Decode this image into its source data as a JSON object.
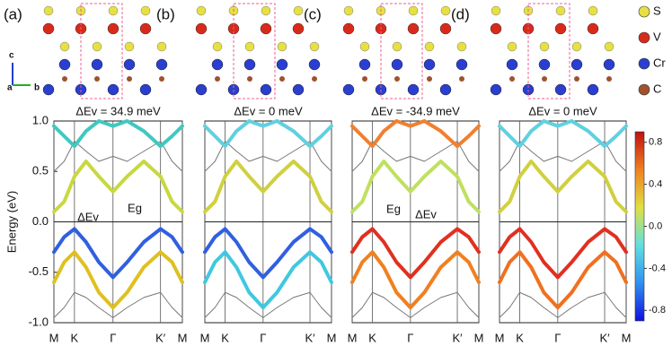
{
  "structure": {
    "axes_labels": [
      "c",
      "a",
      "b"
    ],
    "legend": [
      {
        "name": "S",
        "color": "#e8e040"
      },
      {
        "name": "V",
        "color": "#d82a1a"
      },
      {
        "name": "Cr",
        "color": "#2a3ed0"
      },
      {
        "name": "C",
        "color": "#a0522d"
      }
    ]
  },
  "chart_data": [
    {
      "type": "line",
      "panel_label": "(a)",
      "title": "ΔEv = 34.9 meV",
      "ylabel": "Energy (eV)",
      "annotations": [
        "ΔEv",
        "Eg"
      ],
      "x": [
        0,
        0.08,
        0.16,
        0.25,
        0.35,
        0.46,
        0.57,
        0.7,
        0.83,
        0.92,
        1
      ],
      "xlim": [
        0,
        1
      ],
      "xticks": [
        {
          "value": 0,
          "label": "M"
        },
        {
          "value": 0.16,
          "label": "K"
        },
        {
          "value": 0.46,
          "label": "Γ"
        },
        {
          "value": 0.83,
          "label": "K′"
        },
        {
          "value": 1,
          "label": "M"
        }
      ],
      "ylim": [
        -1,
        1
      ],
      "yticks": [
        {
          "value": 1,
          "label": "1.0"
        },
        0.5,
        {
          "value": 0,
          "label": "0.0"
        },
        -0.5,
        {
          "value": -1,
          "label": "-1.0"
        }
      ],
      "series": [
        {
          "color": "#3060e0",
          "values": [
            -0.3,
            -0.15,
            -0.07,
            -0.2,
            -0.4,
            -0.55,
            -0.4,
            -0.2,
            -0.07,
            -0.15,
            -0.3
          ]
        },
        {
          "color": "#e0c020",
          "values": [
            -0.6,
            -0.4,
            -0.3,
            -0.45,
            -0.7,
            -0.85,
            -0.7,
            -0.45,
            -0.3,
            -0.4,
            -0.6
          ]
        },
        {
          "color": "#777777",
          "values": [
            -0.95,
            -0.85,
            -0.7,
            -0.75,
            -0.85,
            -0.95,
            -0.85,
            -0.75,
            -0.7,
            -0.85,
            -0.95
          ]
        },
        {
          "color": "#c8d840",
          "values": [
            0.1,
            0.2,
            0.45,
            0.6,
            0.45,
            0.3,
            0.45,
            0.6,
            0.45,
            0.2,
            0.1
          ]
        },
        {
          "color": "#777777",
          "values": [
            0.5,
            0.6,
            0.8,
            0.7,
            0.6,
            0.65,
            0.6,
            0.7,
            0.8,
            0.6,
            0.5
          ]
        },
        {
          "color": "#40c8c0",
          "values": [
            0.95,
            0.85,
            0.75,
            0.9,
            1.0,
            0.95,
            1.0,
            0.9,
            0.75,
            0.85,
            0.95
          ]
        }
      ]
    },
    {
      "type": "line",
      "panel_label": "(b)",
      "title": "ΔEv = 0 meV",
      "x": [
        0,
        0.08,
        0.16,
        0.25,
        0.35,
        0.46,
        0.57,
        0.7,
        0.83,
        0.92,
        1
      ],
      "xlim": [
        0,
        1
      ],
      "xticks": [
        {
          "value": 0,
          "label": "M"
        },
        {
          "value": 0.16,
          "label": "K"
        },
        {
          "value": 0.46,
          "label": "Γ"
        },
        {
          "value": 0.83,
          "label": "K′"
        },
        {
          "value": 1,
          "label": "M"
        }
      ],
      "ylim": [
        -1,
        1
      ],
      "series": [
        {
          "color": "#3060e0",
          "values": [
            -0.3,
            -0.15,
            -0.07,
            -0.2,
            -0.4,
            -0.55,
            -0.4,
            -0.2,
            -0.07,
            -0.15,
            -0.3
          ]
        },
        {
          "color": "#40c8e0",
          "values": [
            -0.6,
            -0.4,
            -0.3,
            -0.45,
            -0.7,
            -0.85,
            -0.7,
            -0.45,
            -0.3,
            -0.4,
            -0.6
          ]
        },
        {
          "color": "#777777",
          "values": [
            -0.95,
            -0.85,
            -0.7,
            -0.75,
            -0.85,
            -0.95,
            -0.85,
            -0.75,
            -0.7,
            -0.85,
            -0.95
          ]
        },
        {
          "color": "#d0d040",
          "values": [
            0.1,
            0.2,
            0.45,
            0.6,
            0.45,
            0.3,
            0.45,
            0.6,
            0.45,
            0.2,
            0.1
          ]
        },
        {
          "color": "#777777",
          "values": [
            0.5,
            0.6,
            0.8,
            0.7,
            0.6,
            0.65,
            0.6,
            0.7,
            0.8,
            0.6,
            0.5
          ]
        },
        {
          "color": "#60d0e0",
          "values": [
            0.95,
            0.85,
            0.75,
            0.9,
            1.0,
            0.95,
            1.0,
            0.9,
            0.75,
            0.85,
            0.95
          ]
        }
      ]
    },
    {
      "type": "line",
      "panel_label": "(c)",
      "title": "ΔEv = -34.9 meV",
      "annotations": [
        "Eg",
        "ΔEv"
      ],
      "x": [
        0,
        0.08,
        0.16,
        0.25,
        0.35,
        0.46,
        0.57,
        0.7,
        0.83,
        0.92,
        1
      ],
      "xlim": [
        0,
        1
      ],
      "xticks": [
        {
          "value": 0,
          "label": "M"
        },
        {
          "value": 0.16,
          "label": "K"
        },
        {
          "value": 0.46,
          "label": "Γ"
        },
        {
          "value": 0.83,
          "label": "K′"
        },
        {
          "value": 1,
          "label": "M"
        }
      ],
      "ylim": [
        -1,
        1
      ],
      "series": [
        {
          "color": "#e03020",
          "values": [
            -0.3,
            -0.15,
            -0.07,
            -0.2,
            -0.4,
            -0.55,
            -0.4,
            -0.2,
            -0.07,
            -0.15,
            -0.3
          ]
        },
        {
          "color": "#f08020",
          "values": [
            -0.6,
            -0.4,
            -0.3,
            -0.45,
            -0.7,
            -0.85,
            -0.7,
            -0.45,
            -0.3,
            -0.4,
            -0.6
          ]
        },
        {
          "color": "#777777",
          "values": [
            -0.95,
            -0.85,
            -0.7,
            -0.75,
            -0.85,
            -0.95,
            -0.85,
            -0.75,
            -0.7,
            -0.85,
            -0.95
          ]
        },
        {
          "color": "#c0e060",
          "values": [
            0.1,
            0.2,
            0.45,
            0.6,
            0.45,
            0.3,
            0.45,
            0.6,
            0.45,
            0.2,
            0.1
          ]
        },
        {
          "color": "#777777",
          "values": [
            0.5,
            0.6,
            0.8,
            0.7,
            0.6,
            0.65,
            0.6,
            0.7,
            0.8,
            0.6,
            0.5
          ]
        },
        {
          "color": "#f08030",
          "values": [
            0.95,
            0.85,
            0.75,
            0.9,
            1.0,
            0.95,
            1.0,
            0.9,
            0.75,
            0.85,
            0.95
          ]
        }
      ]
    },
    {
      "type": "line",
      "panel_label": "(d)",
      "title": "ΔEv = 0 meV",
      "x": [
        0,
        0.08,
        0.16,
        0.25,
        0.35,
        0.46,
        0.57,
        0.7,
        0.83,
        0.92,
        1
      ],
      "xlim": [
        0,
        1
      ],
      "xticks": [
        {
          "value": 0,
          "label": "M"
        },
        {
          "value": 0.16,
          "label": "K"
        },
        {
          "value": 0.46,
          "label": "Γ"
        },
        {
          "value": 0.83,
          "label": "K′"
        },
        {
          "value": 1,
          "label": "M"
        }
      ],
      "ylim": [
        -1,
        1
      ],
      "series": [
        {
          "color": "#e03020",
          "values": [
            -0.3,
            -0.15,
            -0.07,
            -0.2,
            -0.4,
            -0.55,
            -0.4,
            -0.2,
            -0.07,
            -0.15,
            -0.3
          ]
        },
        {
          "color": "#f07020",
          "values": [
            -0.6,
            -0.4,
            -0.3,
            -0.45,
            -0.7,
            -0.85,
            -0.7,
            -0.45,
            -0.3,
            -0.4,
            -0.6
          ]
        },
        {
          "color": "#777777",
          "values": [
            -0.95,
            -0.85,
            -0.7,
            -0.75,
            -0.85,
            -0.95,
            -0.85,
            -0.75,
            -0.7,
            -0.85,
            -0.95
          ]
        },
        {
          "color": "#d0d040",
          "values": [
            0.1,
            0.2,
            0.45,
            0.6,
            0.45,
            0.3,
            0.45,
            0.6,
            0.45,
            0.2,
            0.1
          ]
        },
        {
          "color": "#777777",
          "values": [
            0.5,
            0.6,
            0.8,
            0.7,
            0.6,
            0.65,
            0.6,
            0.7,
            0.8,
            0.6,
            0.5
          ]
        },
        {
          "color": "#60d0e0",
          "values": [
            0.95,
            0.85,
            0.75,
            0.9,
            1.0,
            0.95,
            1.0,
            0.9,
            0.75,
            0.85,
            0.95
          ]
        }
      ]
    },
    {
      "type": "colorbar",
      "zlim": [
        -0.9,
        0.9
      ],
      "colors": [
        "#1010e0",
        "#3090f0",
        "#60e0e0",
        "#e0e040",
        "#f08020",
        "#c01010"
      ],
      "ticks": [
        0.8,
        0.4,
        {
          "value": 0,
          "label": "0.0"
        },
        -0.4,
        -0.8
      ]
    }
  ]
}
